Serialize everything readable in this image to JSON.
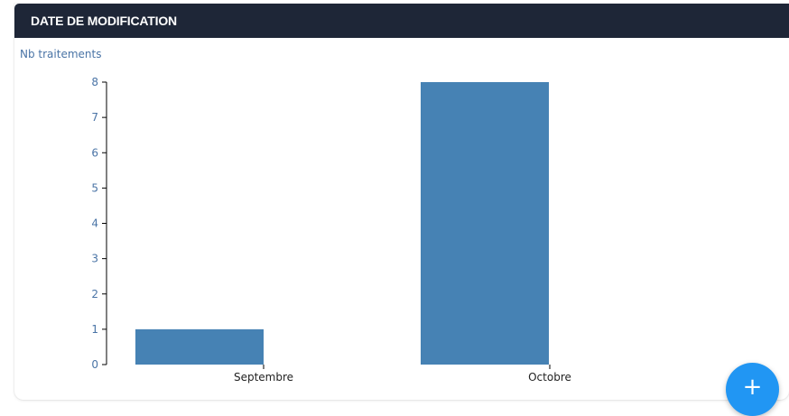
{
  "card": {
    "title": "DATE DE MODIFICATION"
  },
  "fab": {
    "icon": "plus-icon",
    "symbol": "+"
  },
  "colors": {
    "header_bg": "#1e2637",
    "bar": "#4682b4",
    "axis_text": "#4a74a6",
    "fab": "#2196f3"
  },
  "chart_data": {
    "type": "bar",
    "ylabel": "Nb traitements",
    "xlabel": "",
    "categories": [
      "Septembre",
      "Octobre"
    ],
    "values": [
      1,
      8
    ],
    "ylim": [
      0,
      8
    ],
    "yticks": [
      0,
      1,
      2,
      3,
      4,
      5,
      6,
      7,
      8
    ],
    "grid": false,
    "legend": "none"
  }
}
